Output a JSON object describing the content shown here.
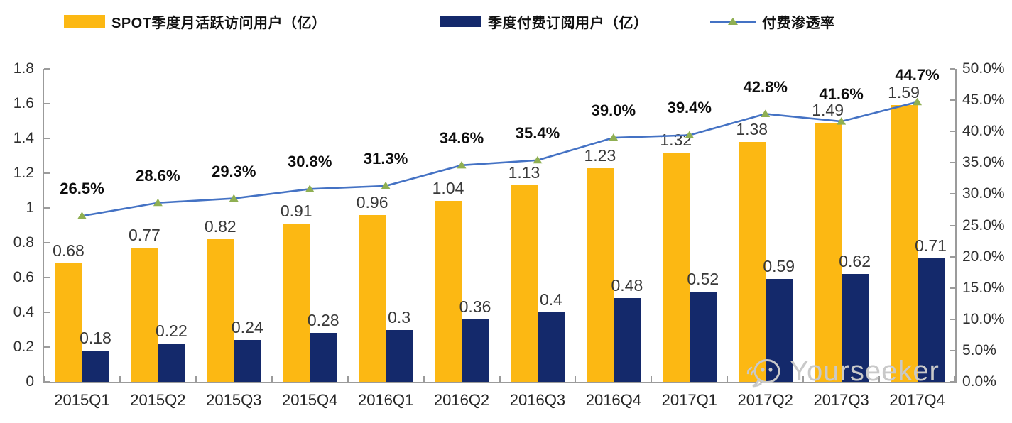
{
  "watermark": {
    "text": "Yourseeker",
    "icon": "wechat-icon"
  },
  "colors": {
    "mau_bar": "#FCB813",
    "subs_bar": "#14296B",
    "line": "#4472C4",
    "marker": "#8FAF52",
    "axis": "#9b9b9b",
    "watermark": "#c9c9c9"
  },
  "chart_data": {
    "type": "bar",
    "subtype": "combo-bar-line",
    "grid": false,
    "legend_position": "top",
    "categories": [
      "2015Q1",
      "2015Q2",
      "2015Q3",
      "2015Q4",
      "2016Q1",
      "2016Q2",
      "2016Q3",
      "2016Q4",
      "2017Q1",
      "2017Q2",
      "2017Q3",
      "2017Q4"
    ],
    "series": [
      {
        "name": "SPOT季度月活跃访问用户（亿）",
        "kind": "bar",
        "axis": "left",
        "color": "#FCB813",
        "values": [
          0.68,
          0.77,
          0.82,
          0.91,
          0.96,
          1.04,
          1.13,
          1.23,
          1.32,
          1.38,
          1.49,
          1.59
        ],
        "labels": [
          "0.68",
          "0.77",
          "0.82",
          "0.91",
          "0.96",
          "1.04",
          "1.13",
          "1.23",
          "1.32",
          "1.38",
          "1.49",
          "1.59"
        ]
      },
      {
        "name": "季度付费订阅用户（亿）",
        "kind": "bar",
        "axis": "left",
        "color": "#14296B",
        "values": [
          0.18,
          0.22,
          0.24,
          0.28,
          0.3,
          0.36,
          0.4,
          0.48,
          0.52,
          0.59,
          0.62,
          0.71
        ],
        "labels": [
          "0.18",
          "0.22",
          "0.24",
          "0.28",
          "0.3",
          "0.36",
          "0.4",
          "0.48",
          "0.52",
          "0.59",
          "0.62",
          "0.71"
        ]
      },
      {
        "name": "付费渗透率",
        "kind": "line",
        "axis": "right",
        "color": "#4472C4",
        "marker": "triangle",
        "marker_color": "#8FAF52",
        "values": [
          26.5,
          28.6,
          29.3,
          30.8,
          31.3,
          34.6,
          35.4,
          39.0,
          39.4,
          42.8,
          41.6,
          44.7
        ],
        "labels": [
          "26.5%",
          "28.6%",
          "29.3%",
          "30.8%",
          "31.3%",
          "34.6%",
          "35.4%",
          "39.0%",
          "39.4%",
          "42.8%",
          "41.6%",
          "44.7%"
        ]
      }
    ],
    "left_axis": {
      "min": 0,
      "max": 1.8,
      "step": 0.2,
      "tick_labels": [
        "0",
        "0.2",
        "0.4",
        "0.6",
        "0.8",
        "1",
        "1.2",
        "1.4",
        "1.6",
        "1.8"
      ]
    },
    "right_axis": {
      "min": 0,
      "max": 50,
      "step": 5,
      "unit": "%",
      "tick_labels": [
        "0.0%",
        "5.0%",
        "10.0%",
        "15.0%",
        "20.0%",
        "25.0%",
        "30.0%",
        "35.0%",
        "40.0%",
        "45.0%",
        "50.0%"
      ]
    }
  }
}
